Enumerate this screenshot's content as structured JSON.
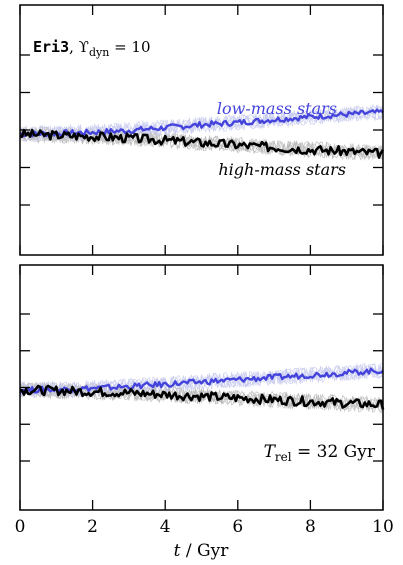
{
  "chart_data": [
    {
      "type": "line",
      "panel": "top",
      "annotation": {
        "prefix": "Eri3",
        "text": ", ϒ",
        "sub": "dyn",
        "suffix": " = 10"
      },
      "xlim": [
        0,
        10
      ],
      "series": [
        {
          "name": "low-mass stars",
          "color": "#4444dd",
          "x": [
            0,
            1,
            2,
            3,
            4,
            5,
            6,
            7,
            8,
            9,
            10
          ],
          "y": [
            0.0,
            0.005,
            0.015,
            0.03,
            0.055,
            0.08,
            0.1,
            0.125,
            0.15,
            0.17,
            0.19
          ]
        },
        {
          "name": "high-mass stars",
          "color": "#000000",
          "x": [
            0,
            1,
            2,
            3,
            4,
            5,
            6,
            7,
            8,
            9,
            10
          ],
          "y": [
            0.0,
            -0.01,
            -0.02,
            -0.035,
            -0.055,
            -0.075,
            -0.095,
            -0.115,
            -0.135,
            -0.15,
            -0.17
          ]
        }
      ],
      "background_runs_color": "#b9b9b9"
    },
    {
      "type": "line",
      "panel": "bottom",
      "annotation": {
        "text": "T",
        "sub": "rel",
        "suffix": " = 32 Gyr"
      },
      "xlim": [
        0,
        10
      ],
      "xticks": [
        0,
        2,
        4,
        6,
        8,
        10
      ],
      "xlabel": {
        "var": "t",
        "unit": " / Gyr"
      },
      "series": [
        {
          "name": "low-mass stars",
          "color": "#4444dd",
          "x": [
            0,
            1,
            2,
            3,
            4,
            5,
            6,
            7,
            8,
            9,
            10
          ],
          "y": [
            0.0,
            0.005,
            0.015,
            0.03,
            0.05,
            0.07,
            0.09,
            0.11,
            0.13,
            0.15,
            0.17
          ]
        },
        {
          "name": "high-mass stars",
          "color": "#000000",
          "x": [
            0,
            1,
            2,
            3,
            4,
            5,
            6,
            7,
            8,
            9,
            10
          ],
          "y": [
            0.0,
            -0.005,
            -0.015,
            -0.025,
            -0.04,
            -0.055,
            -0.07,
            -0.085,
            -0.1,
            -0.115,
            -0.13
          ]
        }
      ],
      "background_runs_color": "#b9b9b9"
    }
  ],
  "labels": {
    "low_mass": "low-mass stars",
    "high_mass": "high-mass stars"
  }
}
